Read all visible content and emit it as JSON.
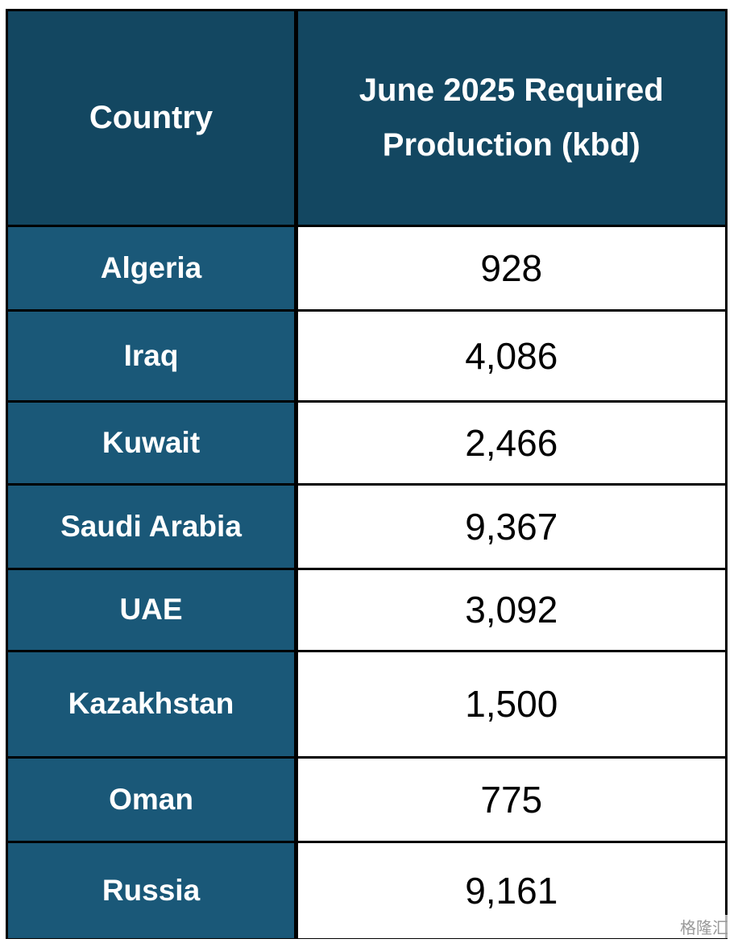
{
  "table": {
    "header": [
      "Country",
      "June 2025 Required Production (kbd)"
    ],
    "rows": [
      [
        "Algeria",
        "928"
      ],
      [
        "Iraq",
        "4,086"
      ],
      [
        "Kuwait",
        "2,466"
      ],
      [
        "Saudi Arabia",
        "9,367"
      ],
      [
        "UAE",
        "3,092"
      ],
      [
        "Kazakhstan",
        "1,500"
      ],
      [
        "Oman",
        "775"
      ],
      [
        "Russia",
        "9,161"
      ]
    ]
  },
  "watermark": "格隆汇"
}
